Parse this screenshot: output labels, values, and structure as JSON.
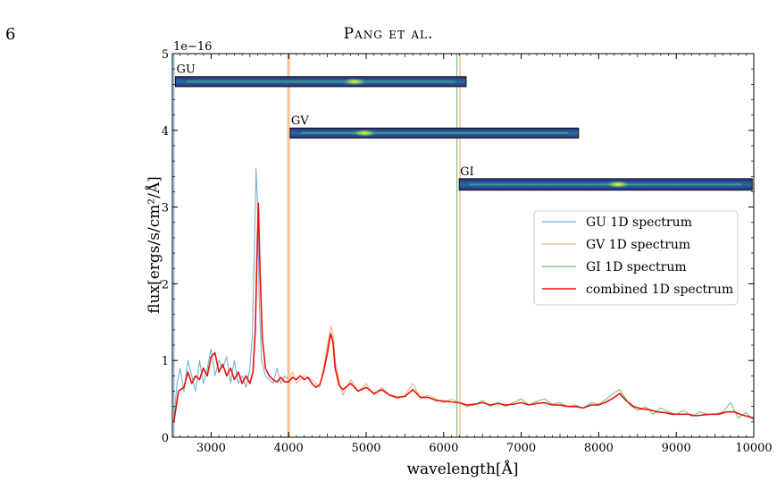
{
  "page": {
    "number": "6",
    "running_head": "Pang et al."
  },
  "chart_data": {
    "type": "line",
    "xlabel": "wavelength[Å]",
    "ylabel": "flux[ergs/s/cm²/Å]",
    "y_scale_label": "1e−16",
    "xlim": [
      2500,
      10000
    ],
    "ylim": [
      0,
      5
    ],
    "xticks": [
      3000,
      4000,
      5000,
      6000,
      7000,
      8000,
      9000,
      10000
    ],
    "yticks": [
      0,
      1,
      2,
      3,
      4,
      5
    ],
    "grid": false,
    "legend_position": "right",
    "series": [
      {
        "name": "GU 1D spectrum",
        "color": "#7bafd4",
        "x": [
          2520,
          2560,
          2600,
          2650,
          2700,
          2750,
          2800,
          2850,
          2900,
          2950,
          3000,
          3050,
          3100,
          3150,
          3200,
          3250,
          3300,
          3350,
          3400,
          3450,
          3500,
          3530,
          3560,
          3580,
          3600,
          3620,
          3650,
          3700,
          3750,
          3800,
          3850,
          3900,
          3950,
          4000
        ],
        "y": [
          0.2,
          0.7,
          0.9,
          0.6,
          1.0,
          0.8,
          0.6,
          1.0,
          0.7,
          0.9,
          1.15,
          0.8,
          1.0,
          0.9,
          1.05,
          0.7,
          1.0,
          0.7,
          0.8,
          0.65,
          0.9,
          1.3,
          2.5,
          3.5,
          3.0,
          1.8,
          1.0,
          0.8,
          0.75,
          0.7,
          0.9,
          0.7,
          0.8,
          0.75
        ]
      },
      {
        "name": "GV 1D spectrum",
        "color": "#f5b27a",
        "x": [
          4000,
          4050,
          4100,
          4200,
          4300,
          4400,
          4450,
          4500,
          4550,
          4580,
          4600,
          4650,
          4700,
          4800,
          4900,
          5000,
          5100,
          5200,
          5300,
          5400,
          5500,
          5600,
          5700,
          5800,
          5900,
          6000,
          6100,
          6200
        ],
        "y": [
          0.75,
          0.85,
          0.7,
          0.8,
          0.75,
          0.65,
          0.9,
          1.2,
          1.45,
          1.3,
          1.0,
          0.75,
          0.55,
          0.75,
          0.6,
          0.7,
          0.55,
          0.65,
          0.55,
          0.5,
          0.55,
          0.7,
          0.5,
          0.55,
          0.5,
          0.45,
          0.5,
          0.45
        ]
      },
      {
        "name": "GI 1D spectrum",
        "color": "#7cc07a",
        "x": [
          6200,
          6300,
          6400,
          6500,
          6600,
          6700,
          6800,
          6900,
          7000,
          7100,
          7200,
          7300,
          7400,
          7500,
          7600,
          7700,
          7800,
          7900,
          8000,
          8100,
          8200,
          8270,
          8350,
          8400,
          8500,
          8600,
          8700,
          8800,
          8900,
          9000,
          9100,
          9200,
          9300,
          9400,
          9500,
          9600,
          9700,
          9800,
          9900,
          10000
        ],
        "y": [
          0.45,
          0.4,
          0.42,
          0.48,
          0.4,
          0.45,
          0.4,
          0.45,
          0.5,
          0.42,
          0.47,
          0.5,
          0.43,
          0.45,
          0.4,
          0.42,
          0.38,
          0.45,
          0.43,
          0.5,
          0.58,
          0.62,
          0.5,
          0.42,
          0.35,
          0.4,
          0.3,
          0.38,
          0.33,
          0.3,
          0.35,
          0.27,
          0.33,
          0.3,
          0.3,
          0.33,
          0.45,
          0.25,
          0.32,
          0.22
        ]
      },
      {
        "name": "combined 1D spectrum",
        "color": "#e8120c",
        "x": [
          2520,
          2580,
          2650,
          2700,
          2750,
          2800,
          2850,
          2900,
          2950,
          3000,
          3050,
          3100,
          3150,
          3200,
          3250,
          3300,
          3350,
          3400,
          3450,
          3500,
          3540,
          3570,
          3590,
          3610,
          3630,
          3660,
          3700,
          3750,
          3800,
          3850,
          3900,
          3950,
          4000,
          4050,
          4100,
          4150,
          4200,
          4250,
          4300,
          4350,
          4400,
          4450,
          4500,
          4540,
          4570,
          4600,
          4650,
          4700,
          4800,
          4900,
          5000,
          5100,
          5200,
          5300,
          5400,
          5500,
          5600,
          5700,
          5800,
          5900,
          6000,
          6100,
          6200,
          6300,
          6400,
          6500,
          6600,
          6700,
          6800,
          6900,
          7000,
          7100,
          7200,
          7300,
          7400,
          7500,
          7600,
          7700,
          7800,
          7900,
          8000,
          8100,
          8200,
          8270,
          8350,
          8450,
          8550,
          8650,
          8750,
          8850,
          8950,
          9050,
          9150,
          9250,
          9350,
          9450,
          9550,
          9650,
          9750,
          9850,
          10000
        ],
        "y": [
          0.2,
          0.6,
          0.65,
          0.85,
          0.7,
          0.8,
          0.75,
          0.9,
          0.8,
          1.05,
          1.1,
          0.85,
          0.95,
          0.8,
          0.9,
          0.75,
          0.85,
          0.7,
          0.8,
          0.7,
          0.85,
          1.4,
          2.3,
          3.05,
          2.2,
          1.3,
          0.9,
          0.8,
          0.75,
          0.72,
          0.78,
          0.72,
          0.72,
          0.78,
          0.75,
          0.8,
          0.75,
          0.78,
          0.7,
          0.65,
          0.68,
          0.85,
          1.1,
          1.35,
          1.25,
          0.9,
          0.68,
          0.62,
          0.7,
          0.6,
          0.65,
          0.57,
          0.62,
          0.55,
          0.52,
          0.53,
          0.62,
          0.52,
          0.52,
          0.48,
          0.47,
          0.46,
          0.45,
          0.42,
          0.43,
          0.45,
          0.42,
          0.44,
          0.42,
          0.43,
          0.45,
          0.42,
          0.44,
          0.45,
          0.42,
          0.42,
          0.4,
          0.4,
          0.38,
          0.42,
          0.42,
          0.46,
          0.52,
          0.57,
          0.48,
          0.4,
          0.37,
          0.36,
          0.33,
          0.32,
          0.3,
          0.3,
          0.3,
          0.28,
          0.29,
          0.3,
          0.3,
          0.33,
          0.33,
          0.29,
          0.25
        ]
      }
    ],
    "annotations": [
      {
        "label": "GU",
        "x_start": 2540,
        "x_end": 6290,
        "y_top": 4.7,
        "y_bottom": 4.57,
        "peak_x": 4850
      },
      {
        "label": "GV",
        "x_start": 4020,
        "x_end": 7740,
        "y_top": 4.03,
        "y_bottom": 3.9,
        "peak_x": 4980
      },
      {
        "label": "GI",
        "x_start": 6200,
        "x_end": 9980,
        "y_top": 3.37,
        "y_bottom": 3.22,
        "peak_x": 8250
      }
    ],
    "vertical_lines": [
      {
        "x": 2520,
        "color": "#7bafd4"
      },
      {
        "x": 3990,
        "color": "#f5b27a"
      },
      {
        "x": 4010,
        "color": "#f5b27a"
      },
      {
        "x": 6170,
        "color": "#7cc07a"
      },
      {
        "x": 6210,
        "color": "#f5b27a"
      }
    ]
  }
}
